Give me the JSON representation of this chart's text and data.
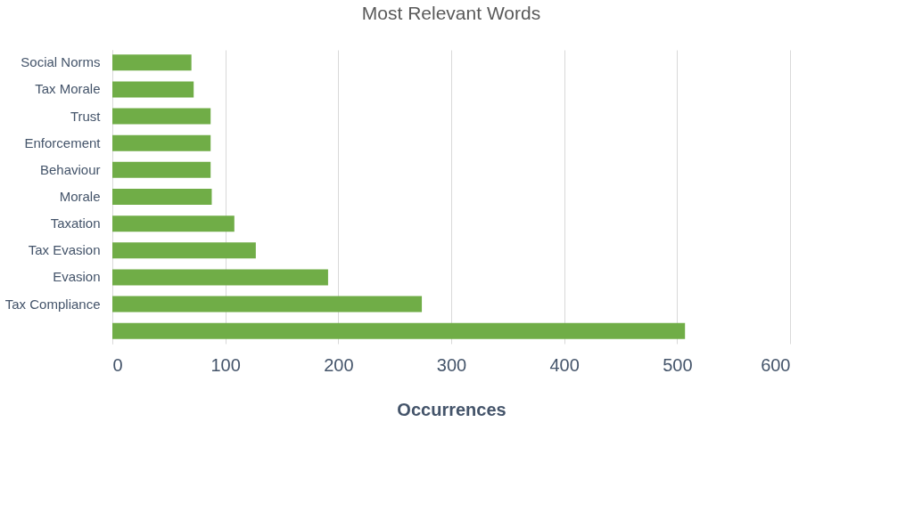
{
  "chart_data": {
    "type": "bar",
    "orientation": "horizontal",
    "title": "Most Relevant Words",
    "xlabel": "Occurrences",
    "categories": [
      "Social Norms",
      "Tax Morale",
      "Trust",
      "Enforcement",
      "Behaviour",
      "Morale",
      "Taxation",
      "Tax Evasion",
      "Evasion",
      "Tax Compliance",
      null
    ],
    "values": [
      70,
      72,
      87,
      87,
      87,
      88,
      108,
      127,
      191,
      274,
      507
    ],
    "color": "#70ad47",
    "xlim": [
      0,
      600
    ],
    "xticks": [
      0,
      100,
      200,
      300,
      400,
      500,
      600
    ],
    "grid": "x"
  }
}
